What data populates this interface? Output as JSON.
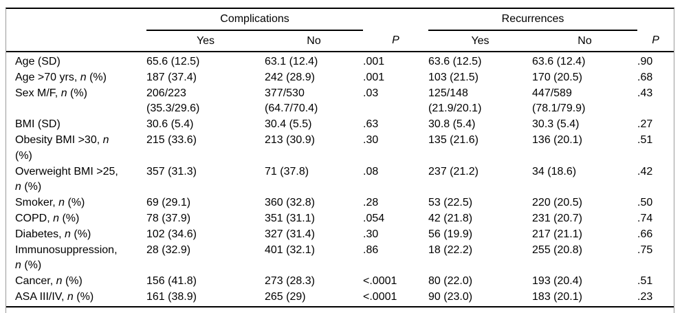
{
  "colors": {
    "background": "#ffffff",
    "text": "#000000",
    "rule": "#000000",
    "frame": "#999999"
  },
  "table": {
    "groups": [
      {
        "label": "Complications"
      },
      {
        "label": "Recurrences"
      }
    ],
    "columns": [
      "Yes",
      "No",
      "P",
      "Yes",
      "No",
      "P"
    ],
    "rows": [
      {
        "label": [
          {
            "text": "Age (SD)"
          }
        ],
        "values": [
          "65.6 (12.5)",
          "63.1 (12.4)",
          ".001",
          "63.6 (12.5)",
          "63.6 (12.4)",
          ".90"
        ]
      },
      {
        "label": [
          {
            "text": "Age >70 yrs, "
          },
          {
            "text": "n",
            "italic": true
          },
          {
            "text": " (%)"
          }
        ],
        "values": [
          "187 (37.4)",
          "242 (28.9)",
          ".001",
          "103 (21.5)",
          "170 (20.5)",
          ".68"
        ]
      },
      {
        "label": [
          {
            "text": "Sex M/F, "
          },
          {
            "text": "n",
            "italic": true
          },
          {
            "text": " (%)"
          }
        ],
        "values": [
          "206/223\n(35.3/29.6)",
          "377/530\n(64.7/70.4)",
          ".03",
          "125/148\n(21.9/20.1)",
          "447/589\n(78.1/79.9)",
          ".43"
        ]
      },
      {
        "label": [
          {
            "text": "BMI (SD)"
          }
        ],
        "values": [
          "30.6 (5.4)",
          "30.4 (5.5)",
          ".63",
          "30.8 (5.4)",
          "30.3 (5.4)",
          ".27"
        ]
      },
      {
        "label": [
          {
            "text": "Obesity BMI >30, "
          },
          {
            "text": "n",
            "italic": true
          },
          {
            "text": "\n(%)"
          }
        ],
        "values": [
          "215 (33.6)",
          "213 (30.9)",
          ".30",
          "135 (21.6)",
          "136 (20.1)",
          ".51"
        ]
      },
      {
        "label": [
          {
            "text": "Overweight BMI >25,\n"
          },
          {
            "text": "n",
            "italic": true
          },
          {
            "text": " (%)"
          }
        ],
        "values": [
          "357 (31.3)",
          "71 (37.8)",
          ".08",
          "237 (21.2)",
          "34 (18.6)",
          ".42"
        ]
      },
      {
        "label": [
          {
            "text": "Smoker, "
          },
          {
            "text": "n",
            "italic": true
          },
          {
            "text": " (%)"
          }
        ],
        "values": [
          "69 (29.1)",
          "360 (32.8)",
          ".28",
          "53 (22.5)",
          "220 (20.5)",
          ".50"
        ]
      },
      {
        "label": [
          {
            "text": "COPD, "
          },
          {
            "text": "n",
            "italic": true
          },
          {
            "text": " (%)"
          }
        ],
        "values": [
          "78 (37.9)",
          "351 (31.1)",
          ".054",
          "42 (21.8)",
          "231 (20.7)",
          ".74"
        ]
      },
      {
        "label": [
          {
            "text": "Diabetes, "
          },
          {
            "text": "n",
            "italic": true
          },
          {
            "text": " (%)"
          }
        ],
        "values": [
          "102 (34.6)",
          "327 (31.4)",
          ".30",
          "56 (19.9)",
          "217 (21.1)",
          ".66"
        ]
      },
      {
        "label": [
          {
            "text": "Immunosuppression,\n"
          },
          {
            "text": "n",
            "italic": true
          },
          {
            "text": " (%)"
          }
        ],
        "values": [
          "28 (32.9)",
          "401 (32.1)",
          ".86",
          "18 (22.2)",
          "255 (20.8)",
          ".75"
        ]
      },
      {
        "label": [
          {
            "text": "Cancer, "
          },
          {
            "text": "n",
            "italic": true
          },
          {
            "text": " (%)"
          }
        ],
        "values": [
          "156 (41.8)",
          "273 (28.3)",
          "<.0001",
          "80 (22.0)",
          "193 (20.4)",
          ".51"
        ]
      },
      {
        "label": [
          {
            "text": "ASA III/IV, "
          },
          {
            "text": "n",
            "italic": true
          },
          {
            "text": " (%)"
          }
        ],
        "values": [
          "161 (38.9)",
          "265 (29)",
          "<.0001",
          "90 (23.0)",
          "183 (20.1)",
          ".23"
        ]
      }
    ]
  }
}
